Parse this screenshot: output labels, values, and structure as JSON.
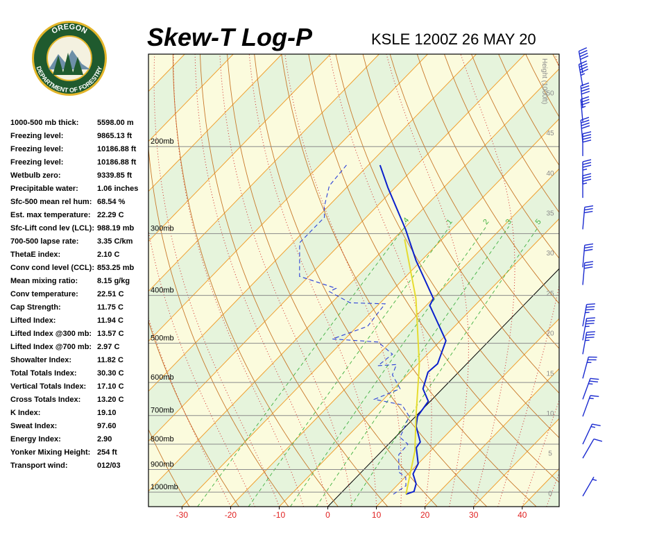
{
  "logo": {
    "top": "OREGON",
    "bottom": "DEPARTMENT OF FORESTRY"
  },
  "header": {
    "title": "Skew-T Log-P",
    "station": "KSLE 1200Z 26 MAY 20"
  },
  "table": {
    "rows": [
      [
        "1000-500 mb thick:",
        "5598.00 m"
      ],
      [
        "Freezing level:",
        "9865.13 ft"
      ],
      [
        "Freezing level:",
        "10186.88 ft"
      ],
      [
        "Freezing level:",
        "10186.88 ft"
      ],
      [
        "Wetbulb zero:",
        "9339.85 ft"
      ],
      [
        "Precipitable water:",
        "1.06 inches"
      ],
      [
        "Sfc-500 mean rel hum:",
        "68.54 %"
      ],
      [
        "Est. max temperature:",
        "22.29 C"
      ],
      [
        "Sfc-Lift cond lev (LCL):",
        "988.19 mb"
      ],
      [
        "700-500 lapse rate:",
        "3.35 C/km"
      ],
      [
        "ThetaE index:",
        "2.10 C"
      ],
      [
        "Conv cond level (CCL):",
        "853.25 mb"
      ],
      [
        "  Mean mixing ratio:",
        "8.15 g/kg"
      ],
      [
        "  Conv temperature:",
        "22.51 C"
      ],
      [
        "Cap Strength:",
        "11.75 C"
      ],
      [
        "Lifted Index:",
        "11.94 C"
      ],
      [
        "Lifted Index @300 mb:",
        "13.57 C"
      ],
      [
        "Lifted Index @700 mb:",
        "2.97 C"
      ],
      [
        "Showalter Index:",
        "11.82 C"
      ],
      [
        "Total Totals Index:",
        "30.30 C"
      ],
      [
        "  Vertical Totals Index:",
        "17.10 C"
      ],
      [
        "  Cross Totals Index:",
        "13.20 C"
      ],
      [
        "K Index:",
        "19.10"
      ],
      [
        "Sweat Index:",
        "97.60"
      ],
      [
        "Energy Index:",
        "2.90"
      ],
      [
        "Yonker Mixing Height:",
        "254 ft"
      ],
      [
        "Transport wind:",
        "012/03"
      ]
    ]
  },
  "chart_data": {
    "type": "skewt",
    "xlim": [
      -36.9,
      47.6
    ],
    "xticks": [
      -30,
      -20,
      -10,
      0,
      10,
      20,
      30,
      40
    ],
    "ylim": [
      1070,
      130
    ],
    "ylog": true,
    "yticks": [
      {
        "value": 1000,
        "label": "1000mb"
      },
      {
        "value": 900,
        "label": "900mb"
      },
      {
        "value": 800,
        "label": "800mb"
      },
      {
        "value": 700,
        "label": "700mb"
      },
      {
        "value": 600,
        "label": "600mb"
      },
      {
        "value": 500,
        "label": "500mb"
      },
      {
        "value": 400,
        "label": "400mb"
      },
      {
        "value": 300,
        "label": "300mb"
      },
      {
        "value": 200,
        "label": "200mb"
      }
    ],
    "y2lim": [
      -1.7,
      54.8
    ],
    "y2ticks": [
      0,
      5,
      10,
      15,
      20,
      25,
      30,
      35,
      40,
      45,
      50
    ],
    "y2label": "Height (1000ft)",
    "mixing_ratios": [
      {
        "value": 0.4,
        "label": ".4"
      },
      {
        "value": 1,
        "label": "1"
      },
      {
        "value": 2,
        "label": "2"
      },
      {
        "value": 3,
        "label": "3"
      },
      {
        "value": 5,
        "label": "5"
      }
    ],
    "series": [
      {
        "color": "#0a1fcc",
        "dash": false,
        "pressure": [
          1010,
          997,
          962,
          919,
          876,
          813,
          792,
          736,
          703,
          655,
          618,
          572,
          550,
          494,
          419,
          406,
          340,
          294,
          242,
          218
        ],
        "values": [
          13.6,
          14.7,
          13.6,
          11.0,
          10.0,
          6.4,
          6.1,
          2.1,
          0.4,
          -0.4,
          -4.0,
          -6.3,
          -6.0,
          -8.9,
          -19.3,
          -19.9,
          -31.1,
          -39.5,
          -51.5,
          -57.6
        ]
      },
      {
        "color": "#2a3fd8",
        "dash": true,
        "pressure": [
          1010,
          971,
          934,
          911,
          840,
          800,
          775,
          703,
          666,
          649,
          618,
          579,
          552,
          555,
          526,
          497,
          490,
          462,
          416,
          414,
          393,
          387,
          366,
          313,
          278,
          265,
          240,
          218
        ],
        "values": [
          11.0,
          11.9,
          10.2,
          7.7,
          4.2,
          4.0,
          1.0,
          -1.3,
          -5.1,
          -11.9,
          -8.7,
          -13.1,
          -14.3,
          -17.9,
          -17.2,
          -22.6,
          -32.6,
          -27.9,
          -28.8,
          -36.2,
          -42.7,
          -42.0,
          -51.9,
          -58.6,
          -58.6,
          -60.7,
          -63.9,
          -64.5
        ]
      },
      {
        "color": "#e6dc30",
        "dash": false,
        "pressure": [
          1010,
          826,
          703,
          552,
          406,
          308
        ],
        "values": [
          13.6,
          6.8,
          0.1,
          -9.6,
          -23.5,
          -37.7
        ]
      }
    ],
    "winds": {
      "pressure": [
        142,
        151,
        167,
        178,
        196,
        209,
        238,
        254,
        294,
        351,
        381,
        462,
        493,
        526,
        589,
        649,
        703,
        800,
        854,
        1019
      ],
      "direction": [
        350,
        350,
        355,
        355,
        355,
        0,
        0,
        0,
        5,
        5,
        5,
        10,
        10,
        10,
        15,
        20,
        20,
        25,
        30,
        30
      ],
      "speed": [
        40,
        45,
        40,
        35,
        40,
        40,
        35,
        35,
        30,
        30,
        30,
        35,
        35,
        35,
        25,
        25,
        15,
        15,
        10,
        5
      ]
    }
  }
}
